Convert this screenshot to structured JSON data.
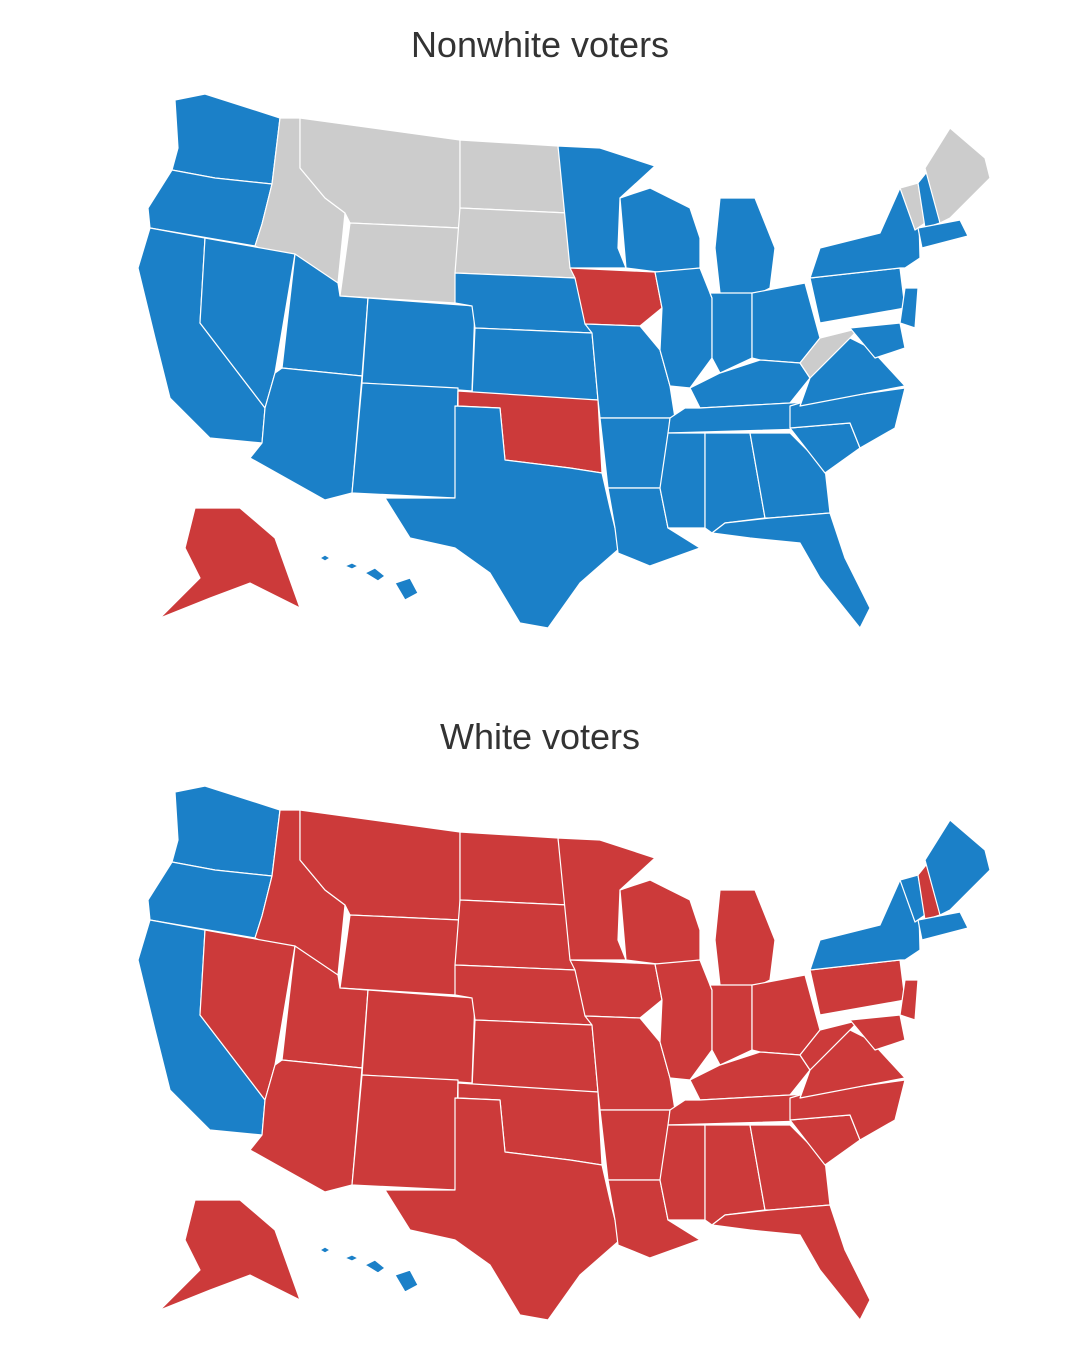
{
  "colors": {
    "blue": "#1b80c8",
    "red": "#cc3a3a",
    "gray": "#cccccc"
  },
  "maps": [
    {
      "title": "Nonwhite voters",
      "states": {
        "WA": "blue",
        "OR": "blue",
        "CA": "blue",
        "ID": "gray",
        "NV": "blue",
        "MT": "gray",
        "WY": "gray",
        "UT": "blue",
        "AZ": "blue",
        "CO": "blue",
        "NM": "blue",
        "ND": "gray",
        "SD": "gray",
        "NE": "blue",
        "KS": "blue",
        "OK": "red",
        "TX": "blue",
        "MN": "blue",
        "IA": "red",
        "MO": "blue",
        "AR": "blue",
        "LA": "blue",
        "WI": "blue",
        "IL": "blue",
        "MI": "blue",
        "IN": "blue",
        "OH": "blue",
        "KY": "blue",
        "TN": "blue",
        "MS": "blue",
        "AL": "blue",
        "GA": "blue",
        "FL": "blue",
        "SC": "blue",
        "NC": "blue",
        "VA": "blue",
        "WV": "gray",
        "PA": "blue",
        "NY": "blue",
        "VT": "gray",
        "NH": "blue",
        "ME": "gray",
        "MA": "blue",
        "NJ": "blue",
        "MD": "blue",
        "AK": "red",
        "HI": "blue"
      }
    },
    {
      "title": "White voters",
      "states": {
        "WA": "blue",
        "OR": "blue",
        "CA": "blue",
        "ID": "red",
        "NV": "red",
        "MT": "red",
        "WY": "red",
        "UT": "red",
        "AZ": "red",
        "CO": "red",
        "NM": "red",
        "ND": "red",
        "SD": "red",
        "NE": "red",
        "KS": "red",
        "OK": "red",
        "TX": "red",
        "MN": "red",
        "IA": "red",
        "MO": "red",
        "AR": "red",
        "LA": "red",
        "WI": "red",
        "IL": "red",
        "MI": "red",
        "IN": "red",
        "OH": "red",
        "KY": "red",
        "TN": "red",
        "MS": "red",
        "AL": "red",
        "GA": "red",
        "FL": "red",
        "SC": "red",
        "NC": "red",
        "VA": "red",
        "WV": "red",
        "PA": "red",
        "NY": "blue",
        "VT": "blue",
        "NH": "red",
        "ME": "blue",
        "MA": "blue",
        "NJ": "red",
        "MD": "red",
        "AK": "red",
        "HI": "blue"
      }
    }
  ]
}
